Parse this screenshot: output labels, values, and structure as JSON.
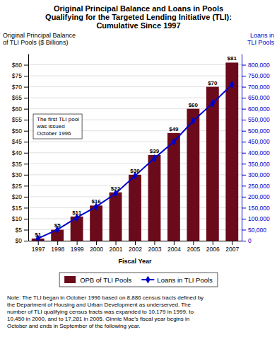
{
  "chart_data": {
    "type": "bar",
    "title": [
      "Original Principal Balance and Loans in Pools",
      "Qualifying for the Targeted Lending Initiative (TLI):",
      "Cumulative Since 1997"
    ],
    "xlabel": "Fiscal Year",
    "ylabel": [
      "Original Principal Balance",
      "of TLI Pools ($ Billions)"
    ],
    "y2label": [
      "Loans in",
      "TLI Pools"
    ],
    "annotation": [
      "The first TLI pool",
      "was issued",
      "October 1996"
    ],
    "note": [
      "Note: The TLI began in October 1996 based on 8,886 census tracts defined by",
      "the Department of Housing and Urban Development as underserved.  The",
      "number of TLI qualifying census tracts was expanded to 10,179 in 1999, to",
      "10,450 in 2000, and to 17,281 in 2005.  Ginnie Mae’s fiscal year begins in",
      "October and ends in September of the following year."
    ],
    "x": [
      1997,
      1998,
      1999,
      2000,
      2001,
      2002,
      2003,
      2004,
      2005,
      2006,
      2007
    ],
    "xlim": [
      1996.5,
      2007.5
    ],
    "xticks": [
      1997,
      1998,
      1999,
      2000,
      2001,
      2002,
      2003,
      2004,
      2005,
      2006,
      2007
    ],
    "ylim": [
      0,
      85
    ],
    "yticks": [
      {
        "value": 0,
        "label": "$0"
      },
      {
        "value": 5,
        "label": "$5"
      },
      {
        "value": 10,
        "label": "$10"
      },
      {
        "value": 15,
        "label": "$15"
      },
      {
        "value": 20,
        "label": "$20"
      },
      {
        "value": 25,
        "label": "$25"
      },
      {
        "value": 30,
        "label": "$30"
      },
      {
        "value": 35,
        "label": "$35"
      },
      {
        "value": 40,
        "label": "$40"
      },
      {
        "value": 45,
        "label": "$45"
      },
      {
        "value": 50,
        "label": "$50"
      },
      {
        "value": 55,
        "label": "$55"
      },
      {
        "value": 60,
        "label": "$60"
      },
      {
        "value": 65,
        "label": "$65"
      },
      {
        "value": 70,
        "label": "$70"
      },
      {
        "value": 75,
        "label": "$75"
      },
      {
        "value": 80,
        "label": "$80"
      }
    ],
    "y2lim": [
      0,
      850000
    ],
    "y2ticks": [
      0,
      {
        "value": 50000,
        "label": "50,000"
      },
      {
        "value": 100000,
        "label": "100,000"
      },
      {
        "value": 150000,
        "label": "150,000"
      },
      {
        "value": 200000,
        "label": "200,000"
      },
      {
        "value": 250000,
        "label": "250,000"
      },
      {
        "value": 300000,
        "label": "300,000"
      },
      {
        "value": 350000,
        "label": "350,000"
      },
      {
        "value": 400000,
        "label": "400,000"
      },
      {
        "value": 450000,
        "label": "450,000"
      },
      {
        "value": 500000,
        "label": "500,000"
      },
      {
        "value": 550000,
        "label": "550,000"
      },
      {
        "value": 600000,
        "label": "600,000"
      },
      {
        "value": 650000,
        "label": "650,000"
      },
      {
        "value": 700000,
        "label": "700,000"
      },
      {
        "value": 750000,
        "label": "750,000"
      },
      {
        "value": 800000,
        "label": "800,000"
      }
    ],
    "grid": true,
    "legend": "bottom",
    "series": [
      {
        "name": "OPB of TLI Pools",
        "type": "bar",
        "color": "#6B0A1A",
        "data_labels": true,
        "values": [
          1,
          5,
          11,
          16,
          22,
          30,
          39,
          49,
          60,
          70,
          81
        ],
        "value_labels": [
          "$1",
          "$5",
          "$11",
          "$16",
          "$22",
          "$30",
          "$39",
          "$49",
          "$60",
          "$70",
          "$81"
        ]
      },
      {
        "name": "Loans in TLI Pools",
        "type": "line",
        "color": "#0000CC",
        "marker": "diamond",
        "axis": "y2",
        "values": [
          10000,
          50000,
          105000,
          155000,
          215000,
          295000,
          375000,
          450000,
          545000,
          625000,
          710000
        ]
      }
    ]
  }
}
